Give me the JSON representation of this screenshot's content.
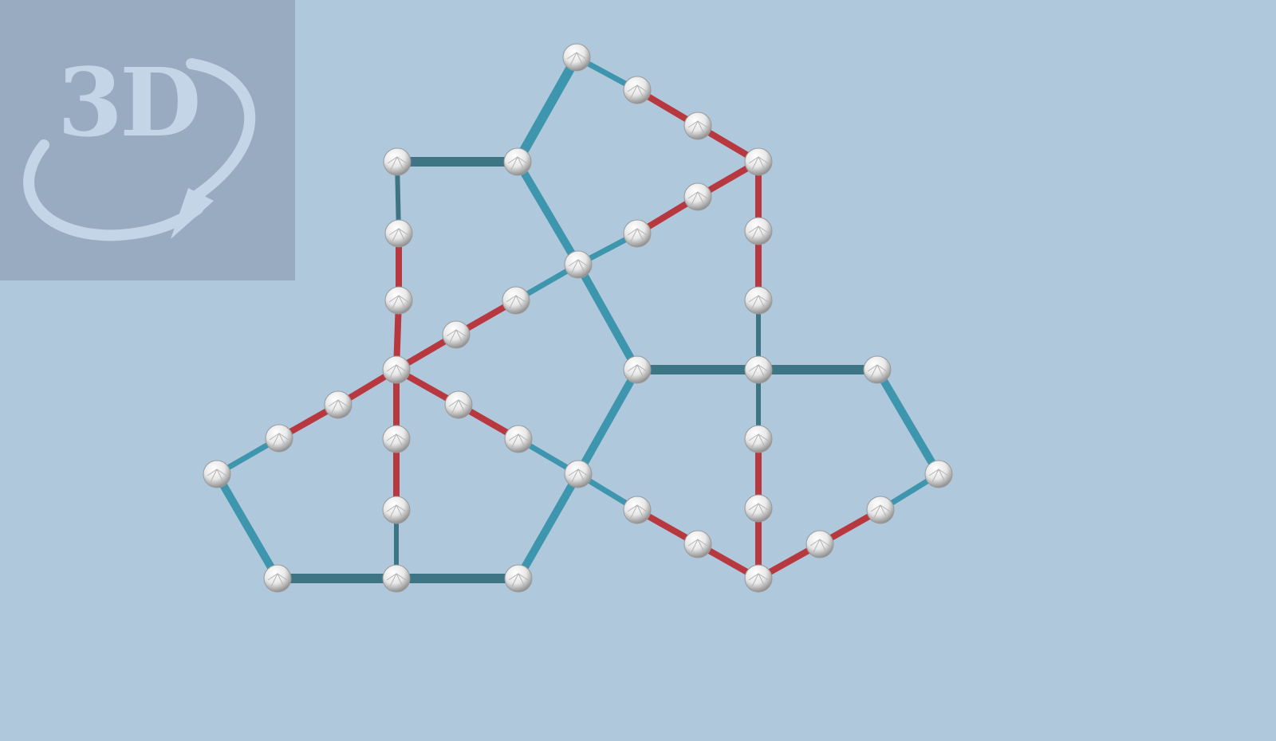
{
  "badge": {
    "text": "3D",
    "color": "#c3d5e6",
    "background": "#98abc0",
    "icon": "rotate-3d-arrow-icon"
  },
  "colors": {
    "background": "#b0c8dc",
    "edge_blue": "#3d96ad",
    "edge_dark": "#3d7585",
    "edge_red": "#b8383f",
    "node": "#e8e8e8"
  }
}
